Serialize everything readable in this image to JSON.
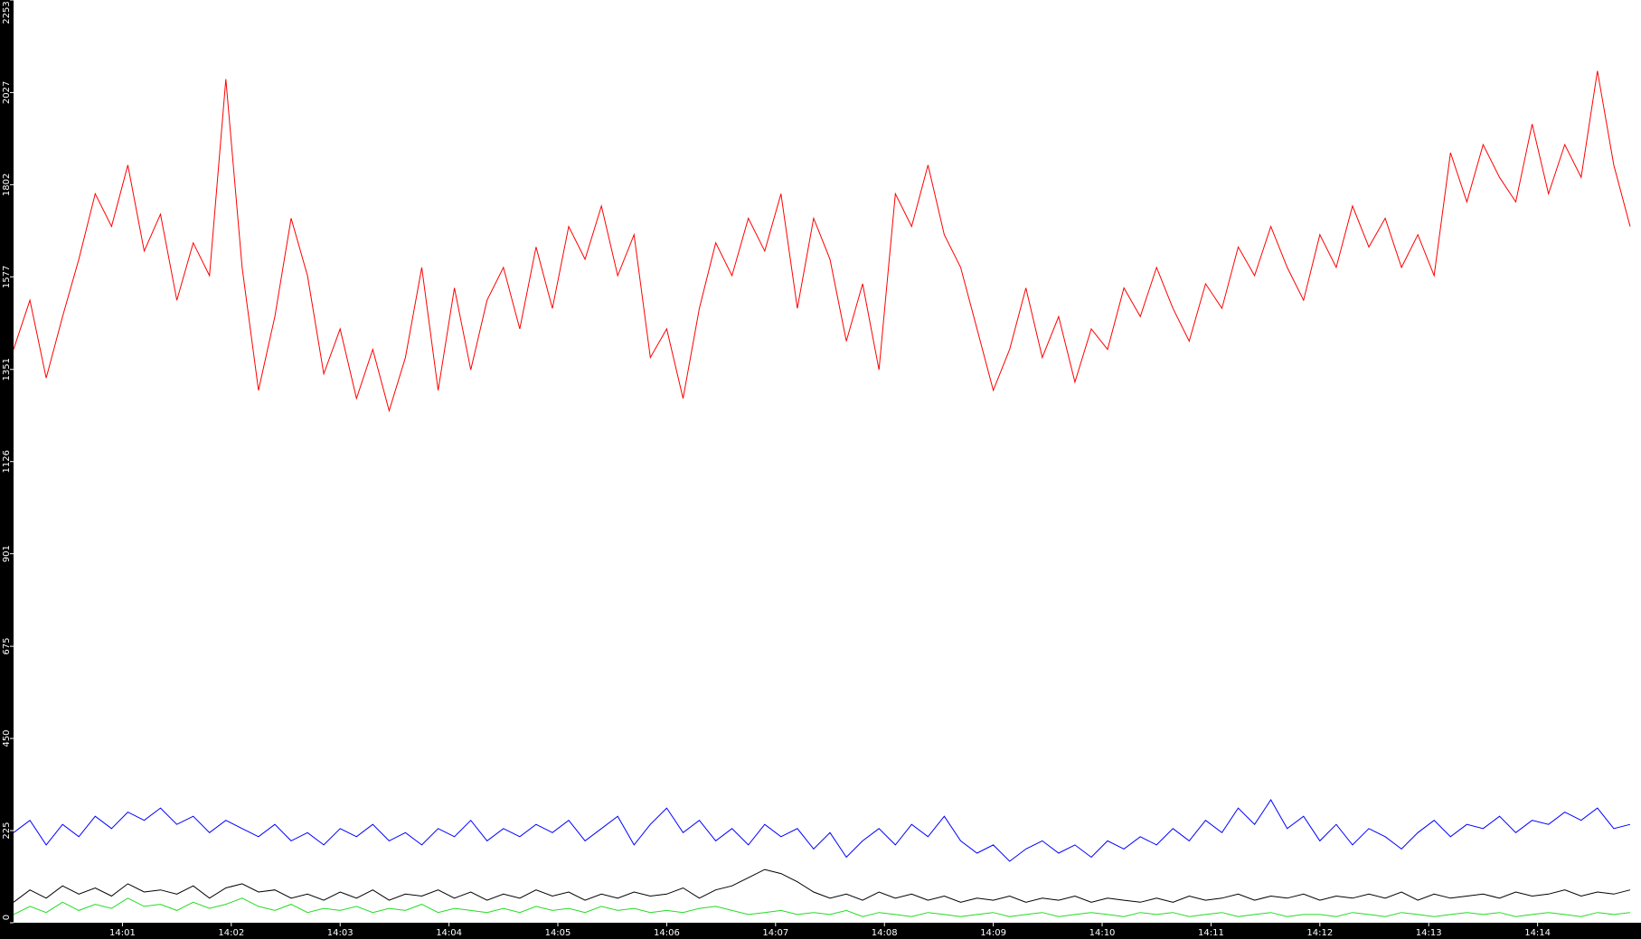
{
  "chart_data": {
    "type": "line",
    "x": [
      0,
      0.15,
      0.3,
      0.45,
      0.6,
      0.75,
      0.9,
      1.05,
      1.2,
      1.35,
      1.5,
      1.65,
      1.8,
      1.95,
      2.1,
      2.25,
      2.4,
      2.55,
      2.7,
      2.85,
      3,
      3.15,
      3.3,
      3.45,
      3.6,
      3.75,
      3.9,
      4.05,
      4.2,
      4.35,
      4.5,
      4.65,
      4.8,
      4.95,
      5.1,
      5.25,
      5.4,
      5.55,
      5.7,
      5.85,
      6,
      6.15,
      6.3,
      6.45,
      6.6,
      6.75,
      6.9,
      7.05,
      7.2,
      7.35,
      7.5,
      7.65,
      7.8,
      7.95,
      8.1,
      8.25,
      8.4,
      8.55,
      8.7,
      8.85,
      9,
      9.15,
      9.3,
      9.45,
      9.6,
      9.75,
      9.9,
      10.05,
      10.2,
      10.35,
      10.5,
      10.65,
      10.8,
      10.95,
      11.1,
      11.25,
      11.4,
      11.55,
      11.7,
      11.85,
      12,
      12.15,
      12.3,
      12.45,
      12.6,
      12.75,
      12.9,
      13.05,
      13.2,
      13.35,
      13.5,
      13.65,
      13.8,
      13.95,
      14.1,
      14.25,
      14.4,
      14.55,
      14.7,
      14.85
    ],
    "series": [
      {
        "color": "#ff0000",
        "values": [
          1400,
          1520,
          1330,
          1480,
          1620,
          1780,
          1700,
          1850,
          1640,
          1730,
          1520,
          1660,
          1580,
          2060,
          1600,
          1300,
          1480,
          1720,
          1580,
          1340,
          1450,
          1280,
          1400,
          1250,
          1380,
          1600,
          1300,
          1550,
          1350,
          1520,
          1600,
          1450,
          1650,
          1500,
          1700,
          1620,
          1750,
          1580,
          1680,
          1380,
          1450,
          1280,
          1500,
          1660,
          1580,
          1720,
          1640,
          1780,
          1500,
          1720,
          1620,
          1420,
          1560,
          1350,
          1780,
          1700,
          1850,
          1680,
          1600,
          1450,
          1300,
          1400,
          1550,
          1380,
          1480,
          1320,
          1450,
          1400,
          1550,
          1480,
          1600,
          1500,
          1420,
          1560,
          1500,
          1650,
          1580,
          1700,
          1600,
          1520,
          1680,
          1600,
          1750,
          1650,
          1720,
          1600,
          1680,
          1580,
          1880,
          1760,
          1900,
          1820,
          1760,
          1950,
          1780,
          1900,
          1820,
          2080,
          1850,
          1700
        ]
      },
      {
        "color": "#0000ff",
        "values": [
          220,
          250,
          190,
          240,
          210,
          260,
          230,
          270,
          250,
          280,
          240,
          260,
          220,
          250,
          230,
          210,
          240,
          200,
          220,
          190,
          230,
          210,
          240,
          200,
          220,
          190,
          230,
          210,
          250,
          200,
          230,
          210,
          240,
          220,
          250,
          200,
          230,
          260,
          190,
          240,
          280,
          220,
          250,
          200,
          230,
          190,
          240,
          210,
          230,
          180,
          220,
          160,
          200,
          230,
          190,
          240,
          210,
          260,
          200,
          170,
          190,
          150,
          180,
          200,
          170,
          190,
          160,
          200,
          180,
          210,
          190,
          230,
          200,
          250,
          220,
          280,
          240,
          300,
          230,
          260,
          200,
          240,
          190,
          230,
          210,
          180,
          220,
          250,
          210,
          240,
          230,
          260,
          220,
          250,
          240,
          270,
          250,
          280,
          230,
          240
        ]
      },
      {
        "color": "#000000",
        "values": [
          50,
          80,
          60,
          90,
          70,
          85,
          65,
          95,
          75,
          80,
          70,
          90,
          60,
          85,
          95,
          75,
          80,
          60,
          70,
          55,
          75,
          60,
          80,
          55,
          70,
          65,
          80,
          60,
          75,
          55,
          70,
          60,
          80,
          65,
          75,
          55,
          70,
          60,
          75,
          65,
          70,
          85,
          60,
          80,
          90,
          110,
          130,
          120,
          100,
          75,
          60,
          70,
          55,
          75,
          60,
          70,
          55,
          65,
          50,
          60,
          55,
          65,
          50,
          60,
          55,
          65,
          50,
          60,
          55,
          50,
          60,
          50,
          65,
          55,
          60,
          70,
          55,
          65,
          60,
          70,
          55,
          65,
          60,
          70,
          60,
          75,
          55,
          70,
          60,
          65,
          70,
          60,
          75,
          65,
          70,
          80,
          65,
          75,
          70,
          80
        ]
      },
      {
        "color": "#22dd22",
        "values": [
          20,
          40,
          25,
          50,
          30,
          45,
          35,
          60,
          40,
          45,
          30,
          50,
          35,
          45,
          60,
          40,
          30,
          45,
          25,
          35,
          30,
          40,
          25,
          35,
          30,
          45,
          25,
          35,
          30,
          25,
          35,
          25,
          40,
          30,
          35,
          25,
          40,
          30,
          35,
          25,
          30,
          25,
          35,
          40,
          30,
          20,
          25,
          30,
          20,
          25,
          20,
          30,
          15,
          25,
          20,
          15,
          25,
          20,
          15,
          20,
          25,
          15,
          20,
          25,
          15,
          20,
          25,
          20,
          15,
          25,
          20,
          25,
          15,
          20,
          25,
          15,
          20,
          25,
          15,
          20,
          20,
          15,
          25,
          20,
          15,
          25,
          20,
          15,
          20,
          25,
          20,
          25,
          15,
          20,
          25,
          20,
          15,
          25,
          20,
          25
        ]
      }
    ],
    "xlim": [
      0,
      14.95
    ],
    "xticks": [
      {
        "value": 1,
        "label": "14:01"
      },
      {
        "value": 2,
        "label": "14:02"
      },
      {
        "value": 3,
        "label": "14:03"
      },
      {
        "value": 4,
        "label": "14:04"
      },
      {
        "value": 5,
        "label": "14:05"
      },
      {
        "value": 6,
        "label": "14:06"
      },
      {
        "value": 7,
        "label": "14:07"
      },
      {
        "value": 8,
        "label": "14:08"
      },
      {
        "value": 9,
        "label": "14:09"
      },
      {
        "value": 10,
        "label": "14:10"
      },
      {
        "value": 11,
        "label": "14:11"
      },
      {
        "value": 12,
        "label": "14:12"
      },
      {
        "value": 13,
        "label": "14:13"
      },
      {
        "value": 14,
        "label": "14:14"
      }
    ],
    "ylim": [
      0,
      2253
    ],
    "yticks": [
      0,
      225,
      450,
      675,
      901,
      1126,
      1351,
      1577,
      1802,
      2027,
      2253
    ]
  }
}
